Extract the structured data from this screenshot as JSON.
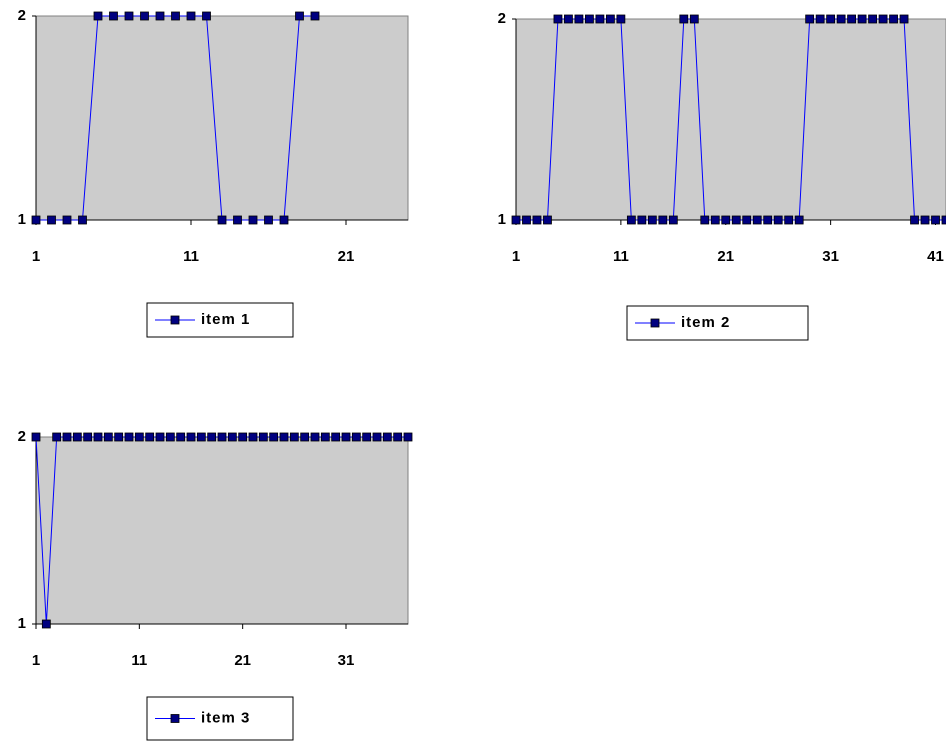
{
  "chart_data": [
    {
      "type": "line",
      "grid": false,
      "xlim": [
        1,
        25
      ],
      "xticks": [
        1,
        11,
        21
      ],
      "ylim": [
        1,
        2
      ],
      "yticks": [
        1,
        2
      ],
      "series": [
        {
          "name": "item 1",
          "color": "#0000ff",
          "marker_color": "#000080",
          "x": [
            1,
            2,
            3,
            4,
            5,
            6,
            7,
            8,
            9,
            10,
            11,
            12,
            13,
            14,
            15,
            16,
            17,
            18,
            19
          ],
          "values": [
            1,
            1,
            1,
            1,
            2,
            2,
            2,
            2,
            2,
            2,
            2,
            2,
            1,
            1,
            1,
            1,
            1,
            2,
            2
          ]
        }
      ]
    },
    {
      "type": "line",
      "grid": false,
      "xlim": [
        1,
        42
      ],
      "xticks": [
        1,
        11,
        21,
        31,
        41
      ],
      "ylim": [
        1,
        2
      ],
      "yticks": [
        1,
        2
      ],
      "series": [
        {
          "name": "item 2",
          "color": "#0000ff",
          "marker_color": "#000080",
          "x": [
            1,
            2,
            3,
            4,
            5,
            6,
            7,
            8,
            9,
            10,
            11,
            12,
            13,
            14,
            15,
            16,
            17,
            18,
            19,
            20,
            21,
            22,
            23,
            24,
            25,
            26,
            27,
            28,
            29,
            30,
            31,
            32,
            33,
            34,
            35,
            36,
            37,
            38,
            39,
            40,
            41,
            42
          ],
          "values": [
            1,
            1,
            1,
            1,
            2,
            2,
            2,
            2,
            2,
            2,
            2,
            1,
            1,
            1,
            1,
            1,
            2,
            2,
            1,
            1,
            1,
            1,
            1,
            1,
            1,
            1,
            1,
            1,
            2,
            2,
            2,
            2,
            2,
            2,
            2,
            2,
            2,
            2,
            1,
            1,
            1,
            1
          ]
        }
      ]
    },
    {
      "type": "line",
      "grid": false,
      "xlim": [
        1,
        37
      ],
      "xticks": [
        1,
        11,
        21,
        31
      ],
      "ylim": [
        1,
        2
      ],
      "yticks": [
        1,
        2
      ],
      "series": [
        {
          "name": "item 3",
          "color": "#0000ff",
          "marker_color": "#000080",
          "x": [
            1,
            2,
            3,
            4,
            5,
            6,
            7,
            8,
            9,
            10,
            11,
            12,
            13,
            14,
            15,
            16,
            17,
            18,
            19,
            20,
            21,
            22,
            23,
            24,
            25,
            26,
            27,
            28,
            29,
            30,
            31,
            32,
            33,
            34,
            35,
            36,
            37
          ],
          "values": [
            2,
            1,
            2,
            2,
            2,
            2,
            2,
            2,
            2,
            2,
            2,
            2,
            2,
            2,
            2,
            2,
            2,
            2,
            2,
            2,
            2,
            2,
            2,
            2,
            2,
            2,
            2,
            2,
            2,
            2,
            2,
            2,
            2,
            2,
            2,
            2,
            2
          ]
        }
      ]
    }
  ]
}
